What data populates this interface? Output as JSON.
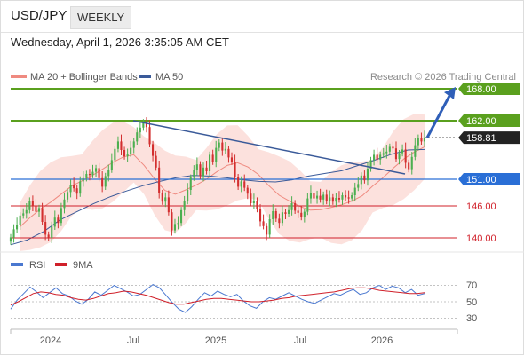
{
  "header": {
    "symbol": "USD/JPY",
    "timeframe_tab": "WEEKLY",
    "timestamp": "Wednesday, April 1, 2026 3:35:05 AM CET"
  },
  "legend": {
    "ma20_label": "MA 20 + Bollinger Bands",
    "ma50_label": "MA 50",
    "copyright": "Research © 2026 Trading Central",
    "ma20_color": "#ef8a80",
    "ma50_color": "#3a5a99"
  },
  "levels": [
    {
      "value": 168.0,
      "label": "168.00",
      "kind": "resistance",
      "color": "#5aa01e"
    },
    {
      "value": 162.0,
      "label": "162.00",
      "kind": "resistance",
      "color": "#5aa01e"
    },
    {
      "value": 158.81,
      "label": "158.81",
      "kind": "last",
      "color": "#222222"
    },
    {
      "value": 151.0,
      "label": "151.00",
      "kind": "pivot",
      "color": "#2a6fd6"
    },
    {
      "value": 146.0,
      "label": "146.00",
      "kind": "support",
      "color": "#d0202a"
    },
    {
      "value": 140.0,
      "label": "140.00",
      "kind": "support",
      "color": "#d0202a"
    }
  ],
  "rsi_panel": {
    "rsi_label": "RSI",
    "ma_label": "9MA",
    "rsi_color": "#4a78d0",
    "ma_color": "#d0202a",
    "ticks": [
      "70",
      "50",
      "30"
    ]
  },
  "x_axis": {
    "ticks": [
      "2024",
      "Jul",
      "2025",
      "Jul",
      "2026"
    ]
  },
  "chart_data": {
    "type": "candlestick",
    "timeframe": "weekly",
    "ylim": [
      137.0,
      171.5
    ],
    "up_color": "#4caf50",
    "down_color": "#d32f2f",
    "series": [
      {
        "name": "USD/JPY",
        "values": [
          140.1,
          141.6,
          142.5,
          144.2,
          144.6,
          145.2,
          147.0,
          146.0,
          144.9,
          145.6,
          143.0,
          140.6,
          140.0,
          142.1,
          143.8,
          142.8,
          145.6,
          147.2,
          148.6,
          150.0,
          149.3,
          148.3,
          150.6,
          151.2,
          152.0,
          151.8,
          152.4,
          153.1,
          151.2,
          149.6,
          151.6,
          152.8,
          154.6,
          156.7,
          158.1,
          156.5,
          155.3,
          155.8,
          156.9,
          158.1,
          159.8,
          160.7,
          161.7,
          160.8,
          157.6,
          155.4,
          153.2,
          148.4,
          146.8,
          147.6,
          144.8,
          141.4,
          142.6,
          142.8,
          145.2,
          146.9,
          149.0,
          151.3,
          152.7,
          153.8,
          151.6,
          153.2,
          152.5,
          155.6,
          154.3,
          156.9,
          157.9,
          156.4,
          156.7,
          155.1,
          154.3,
          151.4,
          149.6,
          150.6,
          149.4,
          148.3,
          146.5,
          147.0,
          145.4,
          143.1,
          142.2,
          140.6,
          143.5,
          145.0,
          143.6,
          142.8,
          144.8,
          144.5,
          145.2,
          146.5,
          145.1,
          144.7,
          143.9,
          144.9,
          147.4,
          148.5,
          147.4,
          147.9,
          147.2,
          148.1,
          146.9,
          147.6,
          146.8,
          147.5,
          147.2,
          148.0,
          147.6,
          147.4,
          148.0,
          149.4,
          150.1,
          151.7,
          150.8,
          153.0,
          154.6,
          155.6,
          154.7,
          155.6,
          155.9,
          156.2,
          157.1,
          156.8,
          154.8,
          155.9,
          156.6,
          154.1,
          152.9,
          155.2,
          157.4,
          158.8,
          158.1,
          158.81
        ]
      },
      {
        "name": "MA 50",
        "values": [
          138.7,
          139.6,
          141.2,
          143.4,
          144.9,
          146.4,
          147.7,
          148.8,
          149.8,
          150.6,
          151.3,
          151.7,
          151.6,
          151.3,
          150.9,
          150.6,
          150.5,
          150.9,
          151.6,
          152.1,
          152.6,
          153.6,
          154.6,
          155.7,
          156.5,
          156.6
        ]
      },
      {
        "name": "MA 20",
        "values": [
          142.0,
          143.8,
          145.4,
          146.7,
          148.2,
          149.7,
          150.7,
          151.7,
          152.9,
          154.2,
          155.2,
          155.6,
          153.6,
          151.1,
          148.9,
          148.2,
          149.0,
          149.9,
          151.0,
          152.4,
          153.6,
          154.1,
          153.3,
          151.9,
          149.8,
          148.0,
          146.9,
          145.9,
          145.2,
          145.3,
          145.7,
          146.2,
          146.9,
          147.9,
          149.7,
          151.3,
          153.1,
          154.8,
          156.1,
          157.1
        ]
      }
    ],
    "rsi": {
      "ylim": [
        20,
        80
      ],
      "rsi": [
        41,
        52,
        60,
        68,
        62,
        55,
        61,
        67,
        60,
        57,
        51,
        47,
        53,
        62,
        58,
        64,
        70,
        66,
        62,
        57,
        59,
        65,
        71,
        67,
        58,
        49,
        41,
        37,
        44,
        53,
        61,
        57,
        63,
        59,
        56,
        59,
        51,
        45,
        42,
        50,
        55,
        53,
        57,
        61,
        57,
        53,
        50,
        48,
        52,
        56,
        60,
        58,
        62,
        65,
        59,
        61,
        67,
        70,
        65,
        69,
        67,
        61,
        65,
        58,
        60
      ],
      "ma": [
        46,
        50,
        55,
        60,
        62,
        61,
        59,
        58,
        55,
        53,
        52,
        54,
        57,
        60,
        61,
        63,
        62,
        60,
        58,
        55,
        52,
        49,
        47,
        47,
        49,
        51,
        53,
        54,
        54,
        53,
        52,
        51,
        50,
        50,
        51,
        52,
        54,
        55,
        57,
        58,
        59,
        60,
        61,
        62,
        64,
        66,
        67,
        67,
        66,
        64,
        63,
        62,
        61,
        60,
        60,
        61
      ]
    },
    "trendlines": [
      {
        "name": "descending-trendline",
        "from": {
          "x": "Jul 2024",
          "y": 162.0
        },
        "to": {
          "x": "Dec 2025",
          "y": 152.0
        }
      },
      {
        "name": "projection-arrow",
        "from": {
          "x": "Mar 2026",
          "y": 158.81
        },
        "to": {
          "x": "Apr 2026",
          "y": 168.0
        }
      }
    ],
    "x_ticks": [
      "2024",
      "Jul",
      "2025",
      "Jul",
      "2026"
    ],
    "ylabel": "",
    "title": ""
  }
}
